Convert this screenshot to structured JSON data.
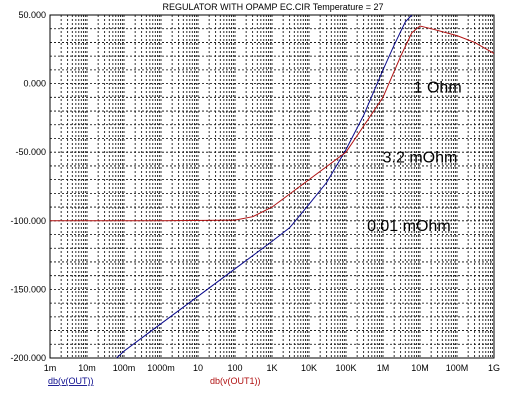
{
  "chart_data": {
    "type": "line",
    "title": "REGULATOR WITH OPAMP EC.CIR Temperature = 27",
    "x_scale": "log",
    "xlim": [
      0.001,
      1000000000
    ],
    "ylim": [
      -200,
      50
    ],
    "grid": true,
    "y_ticks": [
      {
        "value": 50,
        "label": "50.000"
      },
      {
        "value": 0,
        "label": "0.000"
      },
      {
        "value": -50,
        "label": "-50.000"
      },
      {
        "value": -100,
        "label": "-100.000"
      },
      {
        "value": -150,
        "label": "-150.000"
      },
      {
        "value": -200,
        "label": "-200.000"
      }
    ],
    "x_ticks": [
      {
        "value": 0.001,
        "label": "1m"
      },
      {
        "value": 0.01,
        "label": "10m"
      },
      {
        "value": 0.1,
        "label": "100m"
      },
      {
        "value": 1,
        "label": "1000m"
      },
      {
        "value": 10,
        "label": "10"
      },
      {
        "value": 100,
        "label": "100"
      },
      {
        "value": 1000,
        "label": "1K"
      },
      {
        "value": 10000,
        "label": "10K"
      },
      {
        "value": 100000,
        "label": "100K"
      },
      {
        "value": 1000000,
        "label": "1M"
      },
      {
        "value": 10000000,
        "label": "10M"
      },
      {
        "value": 100000000,
        "label": "100M"
      },
      {
        "value": 1000000000,
        "label": "1G"
      }
    ],
    "series": [
      {
        "name": "db(v(OUT))",
        "color": "#0a0a8c",
        "x": [
          0.0631,
          0.1,
          1,
          10,
          100,
          1000,
          3000,
          10000,
          30000,
          100000,
          300000,
          1000000,
          2000000,
          4000000,
          6000000
        ],
        "y": [
          -200,
          -195,
          -175,
          -155,
          -135,
          -115,
          -105,
          -88,
          -72,
          -48,
          -23,
          10,
          28,
          45,
          50
        ]
      },
      {
        "name": "db(v(OUT1))",
        "color": "#b01010",
        "x": [
          0.001,
          1,
          100,
          300,
          1000,
          10000,
          100000,
          1000000,
          3000000,
          6000000,
          10000000,
          20000000,
          100000000,
          300000000,
          1000000000
        ],
        "y": [
          -100,
          -100,
          -99.5,
          -97,
          -90,
          -70,
          -50,
          -10,
          20,
          37,
          42,
          40,
          35,
          30,
          22
        ]
      }
    ],
    "annotations": [
      {
        "text": "1 Ohm",
        "x": 30000000,
        "y": -2
      },
      {
        "text": "3.2 mOhm",
        "x": 10000000,
        "y": -53
      },
      {
        "text": "0.01 mOhm",
        "x": 5000000,
        "y": -103
      }
    ]
  }
}
